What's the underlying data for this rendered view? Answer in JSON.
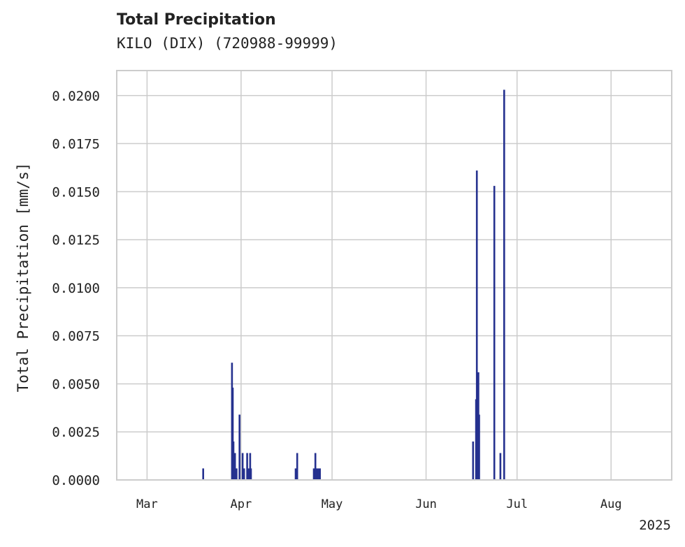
{
  "chart_data": {
    "type": "bar",
    "title": "Total Precipitation",
    "subtitle": "KILO (DIX) (720988-99999)",
    "xlabel": "",
    "ylabel": "Total Precipitation [mm/s]",
    "ylim": [
      0,
      0.0213
    ],
    "xlim": [
      "2025-02-19",
      "2025-08-21"
    ],
    "grid": true,
    "legend": "none",
    "year_label": "2025",
    "y_ticks": [
      {
        "value": 0.0,
        "label": "0.0000"
      },
      {
        "value": 0.0025,
        "label": "0.0025"
      },
      {
        "value": 0.005,
        "label": "0.0050"
      },
      {
        "value": 0.0075,
        "label": "0.0075"
      },
      {
        "value": 0.01,
        "label": "0.0100"
      },
      {
        "value": 0.0125,
        "label": "0.0125"
      },
      {
        "value": 0.015,
        "label": "0.0150"
      },
      {
        "value": 0.0175,
        "label": "0.0175"
      },
      {
        "value": 0.02,
        "label": "0.0200"
      }
    ],
    "x_ticks": [
      {
        "date": "2025-03-01",
        "label": "Mar"
      },
      {
        "date": "2025-04-01",
        "label": "Apr"
      },
      {
        "date": "2025-05-01",
        "label": "May"
      },
      {
        "date": "2025-06-01",
        "label": "Jun"
      },
      {
        "date": "2025-07-01",
        "label": "Jul"
      },
      {
        "date": "2025-08-01",
        "label": "Aug"
      }
    ],
    "series": [
      {
        "name": "Total Precipitation",
        "color": "#25318f",
        "points": [
          {
            "date": "2025-03-19T12:00",
            "value": 0.0006
          },
          {
            "date": "2025-03-29T00:00",
            "value": 0.0061
          },
          {
            "date": "2025-03-29T06:00",
            "value": 0.0048
          },
          {
            "date": "2025-03-29T12:00",
            "value": 0.002
          },
          {
            "date": "2025-03-30T00:00",
            "value": 0.0014
          },
          {
            "date": "2025-03-30T12:00",
            "value": 0.0006
          },
          {
            "date": "2025-03-31T12:00",
            "value": 0.0034
          },
          {
            "date": "2025-04-01T12:00",
            "value": 0.0014
          },
          {
            "date": "2025-04-02T00:00",
            "value": 0.0006
          },
          {
            "date": "2025-04-03T00:00",
            "value": 0.0014
          },
          {
            "date": "2025-04-03T12:00",
            "value": 0.0006
          },
          {
            "date": "2025-04-04T00:00",
            "value": 0.0014
          },
          {
            "date": "2025-04-04T06:00",
            "value": 0.0006
          },
          {
            "date": "2025-04-19T00:00",
            "value": 0.0006
          },
          {
            "date": "2025-04-19T12:00",
            "value": 0.0014
          },
          {
            "date": "2025-04-25T00:00",
            "value": 0.0006
          },
          {
            "date": "2025-04-25T12:00",
            "value": 0.0014
          },
          {
            "date": "2025-04-26T00:00",
            "value": 0.0006
          },
          {
            "date": "2025-04-26T12:00",
            "value": 0.0006
          },
          {
            "date": "2025-04-27T00:00",
            "value": 0.0006
          },
          {
            "date": "2025-06-16T12:00",
            "value": 0.002
          },
          {
            "date": "2025-06-17T12:00",
            "value": 0.0042
          },
          {
            "date": "2025-06-17T18:00",
            "value": 0.0161
          },
          {
            "date": "2025-06-18T06:00",
            "value": 0.0056
          },
          {
            "date": "2025-06-18T12:00",
            "value": 0.0034
          },
          {
            "date": "2025-06-23T12:00",
            "value": 0.0153
          },
          {
            "date": "2025-06-25T12:00",
            "value": 0.0014
          },
          {
            "date": "2025-06-26T18:00",
            "value": 0.0203
          }
        ]
      }
    ]
  }
}
